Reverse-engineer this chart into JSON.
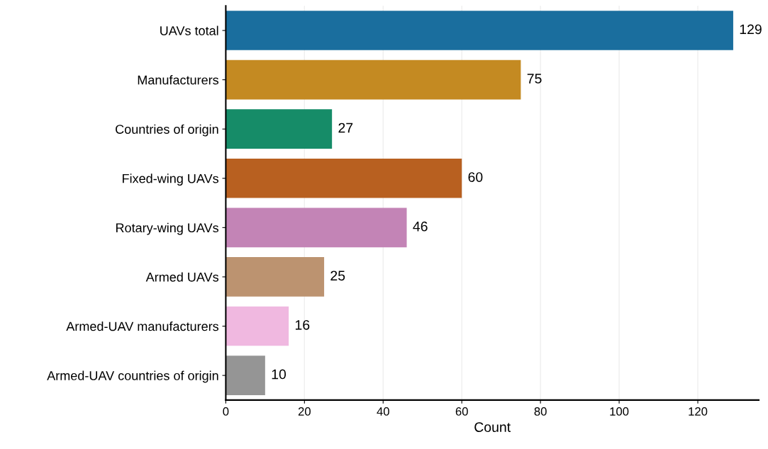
{
  "chart_data": {
    "type": "bar",
    "orientation": "horizontal",
    "xlabel": "Count",
    "categories": [
      "UAVs total",
      "Manufacturers",
      "Countries of origin",
      "Fixed-wing UAVs",
      "Rotary-wing UAVs",
      "Armed UAVs",
      "Armed-UAV manufacturers",
      "Armed-UAV countries of origin"
    ],
    "values": [
      129,
      75,
      27,
      60,
      46,
      25,
      16,
      10
    ],
    "colors": [
      "#1a6e9e",
      "#c48a22",
      "#168c68",
      "#b86020",
      "#c384b6",
      "#bc9370",
      "#f0b8e0",
      "#959595"
    ],
    "xlim": [
      0,
      135.5
    ],
    "xticks": [
      0,
      20,
      40,
      60,
      80,
      100,
      120
    ],
    "grid": "x",
    "data_labels": true
  }
}
